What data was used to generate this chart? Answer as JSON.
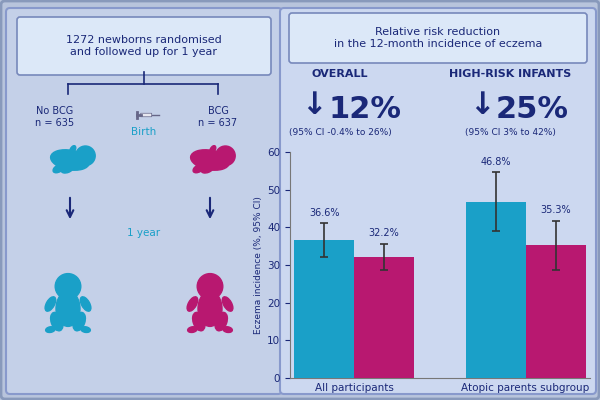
{
  "bg_outer": "#b8c4dc",
  "bg_left": "#c0ccе4",
  "bg_right": "#ccd4ec",
  "panel_left_bg": "#beccе8",
  "panel_right_bg": "#ccd8f0",
  "box_fill": "#e4ecf8",
  "dark_blue": "#1a2878",
  "teal": "#1aa0c8",
  "magenta": "#b81870",
  "header_text": "1272 newborns randomised\nand followed up for 1 year",
  "rr_title": "Relative risk reduction\nin the 12-month incidence of eczema",
  "overall_label": "OVERALL",
  "overall_pct": "12%",
  "overall_ci": "(95% CI -0.4% to 26%)",
  "hri_label": "HIGH-RISK INFANTS",
  "hri_pct": "25%",
  "hri_ci": "(95% CI 3% to 42%)",
  "no_bcg_label": "No BCG\nn = 635",
  "bcg_label": "BCG\nn = 637",
  "birth_label": "Birth",
  "year_label": "1 year",
  "bar_groups": [
    "All participants",
    "Atopic parents subgroup"
  ],
  "bar_values_nobcg": [
    36.6,
    46.8
  ],
  "bar_values_bcg": [
    32.2,
    35.3
  ],
  "bar_errors_nobcg": [
    4.5,
    7.8
  ],
  "bar_errors_bcg": [
    3.5,
    6.5
  ],
  "bar_labels_nobcg": [
    "36.6%",
    "46.8%"
  ],
  "bar_labels_bcg": [
    "32.2%",
    "35.3%"
  ],
  "ylabel": "Eczema incidence (%, 95% CI)",
  "ylim": [
    0,
    60
  ],
  "yticks": [
    0,
    10,
    20,
    30,
    40,
    50,
    60
  ]
}
